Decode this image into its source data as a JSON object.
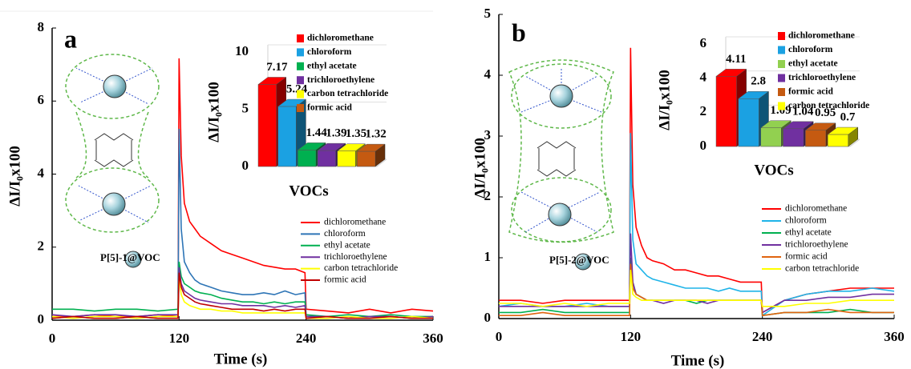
{
  "chart_data": [
    {
      "type": "line",
      "panel_label": "a",
      "annotation": "P[5]-1@VOC",
      "xlabel": "Time (s)",
      "ylabel": "ΔI/I₀x100",
      "x": [
        0,
        20,
        40,
        60,
        80,
        100,
        119,
        120,
        122,
        125,
        130,
        135,
        140,
        150,
        160,
        170,
        180,
        190,
        200,
        210,
        220,
        230,
        239,
        240,
        260,
        280,
        300,
        320,
        340,
        360
      ],
      "xlim": [
        0,
        360
      ],
      "xticks": [
        0,
        120,
        240,
        360
      ],
      "ylim": [
        0,
        8
      ],
      "yticks": [
        0,
        2,
        4,
        6,
        8
      ],
      "series": [
        {
          "name": "dichloromethane",
          "color": "#ff0000",
          "values": [
            0.1,
            0.1,
            0.15,
            0.1,
            0.1,
            0.15,
            0.1,
            7.17,
            4.5,
            3.2,
            2.7,
            2.5,
            2.3,
            2.1,
            1.9,
            1.8,
            1.7,
            1.6,
            1.5,
            1.45,
            1.4,
            1.4,
            1.3,
            0.3,
            0.25,
            0.2,
            0.3,
            0.2,
            0.3,
            0.25
          ]
        },
        {
          "name": "chloroform",
          "color": "#2e75b6",
          "values": [
            0.05,
            0.1,
            0.05,
            0.05,
            0.1,
            0.05,
            0.05,
            5.24,
            2.5,
            1.6,
            1.3,
            1.1,
            1.0,
            0.9,
            0.8,
            0.75,
            0.7,
            0.7,
            0.75,
            0.7,
            0.8,
            0.7,
            0.75,
            0.1,
            0.1,
            0.05,
            0.1,
            0.1,
            0.05,
            0.1
          ]
        },
        {
          "name": "ethyl acetate",
          "color": "#00b050",
          "values": [
            0.3,
            0.3,
            0.25,
            0.3,
            0.3,
            0.25,
            0.3,
            1.6,
            1.2,
            1.0,
            0.9,
            0.8,
            0.75,
            0.7,
            0.6,
            0.55,
            0.5,
            0.5,
            0.45,
            0.5,
            0.45,
            0.5,
            0.5,
            0.15,
            0.1,
            0.15,
            0.1,
            0.15,
            0.1,
            0.1
          ]
        },
        {
          "name": "trichloroethylene",
          "color": "#7030a0",
          "values": [
            0.15,
            0.1,
            0.15,
            0.15,
            0.1,
            0.15,
            0.15,
            1.45,
            1.0,
            0.8,
            0.7,
            0.6,
            0.55,
            0.5,
            0.45,
            0.45,
            0.4,
            0.4,
            0.4,
            0.35,
            0.4,
            0.35,
            0.4,
            0.1,
            0.1,
            0.05,
            0.1,
            0.1,
            0.05,
            0.1
          ]
        },
        {
          "name": "carbon tetrachloride",
          "color": "#ffff00",
          "values": [
            0.1,
            0.05,
            0.1,
            0.1,
            0.05,
            0.1,
            0.1,
            1.2,
            0.7,
            0.5,
            0.4,
            0.35,
            0.3,
            0.3,
            0.25,
            0.25,
            0.2,
            0.2,
            0.2,
            0.2,
            0.2,
            0.2,
            0.2,
            0.05,
            0.05,
            0.1,
            0.05,
            0.05,
            0.1,
            0.05
          ]
        },
        {
          "name": "formic acid",
          "color": "#c00000",
          "values": [
            0.05,
            0.1,
            0.05,
            0.05,
            0.1,
            0.05,
            0.05,
            1.3,
            0.9,
            0.7,
            0.6,
            0.5,
            0.45,
            0.4,
            0.35,
            0.3,
            0.3,
            0.3,
            0.25,
            0.3,
            0.25,
            0.3,
            0.3,
            0.05,
            0.1,
            0.05,
            0.05,
            0.1,
            0.05,
            0.05
          ]
        }
      ]
    },
    {
      "type": "bar",
      "xlabel": "VOCs",
      "ylabel": "ΔI/I₀x100",
      "categories": [
        "dichloromethane",
        "chloroform",
        "ethyl acetate",
        "trichloroethylene",
        "carbon tetrachloride",
        "formic acid"
      ],
      "values": [
        7.17,
        5.24,
        1.44,
        1.39,
        1.35,
        1.32
      ],
      "colors": [
        "#ff0000",
        "#1ba1e2",
        "#00b050",
        "#7030a0",
        "#ffff00",
        "#c55a11"
      ],
      "ylim": [
        0,
        10
      ],
      "yticks": [
        0,
        5,
        10
      ]
    },
    {
      "type": "line",
      "panel_label": "b",
      "annotation": "P[5]-2@VOC",
      "xlabel": "Time (s)",
      "ylabel": "ΔI/I₀x100",
      "x": [
        0,
        20,
        40,
        60,
        80,
        100,
        119,
        120,
        122,
        125,
        130,
        135,
        140,
        150,
        160,
        170,
        180,
        190,
        200,
        210,
        220,
        230,
        239,
        240,
        260,
        280,
        300,
        320,
        340,
        360
      ],
      "xlim": [
        0,
        360
      ],
      "xticks": [
        0,
        120,
        240,
        360
      ],
      "ylim": [
        0,
        5
      ],
      "yticks": [
        0,
        1,
        2,
        3,
        4,
        5
      ],
      "series": [
        {
          "name": "dichloromethane",
          "color": "#ff0000",
          "values": [
            0.3,
            0.3,
            0.25,
            0.3,
            0.3,
            0.3,
            0.3,
            4.45,
            2.2,
            1.5,
            1.2,
            1.0,
            0.95,
            0.9,
            0.8,
            0.8,
            0.75,
            0.7,
            0.7,
            0.65,
            0.6,
            0.6,
            0.6,
            0.1,
            0.3,
            0.4,
            0.45,
            0.5,
            0.5,
            0.5
          ]
        },
        {
          "name": "chloroform",
          "color": "#1fb4e8",
          "values": [
            0.2,
            0.25,
            0.2,
            0.2,
            0.25,
            0.2,
            0.2,
            3.05,
            1.3,
            0.9,
            0.8,
            0.7,
            0.65,
            0.6,
            0.55,
            0.5,
            0.5,
            0.5,
            0.45,
            0.5,
            0.45,
            0.45,
            0.45,
            0.05,
            0.3,
            0.4,
            0.45,
            0.45,
            0.5,
            0.45
          ]
        },
        {
          "name": "ethyl acetate",
          "color": "#00b050",
          "values": [
            0.1,
            0.1,
            0.15,
            0.1,
            0.1,
            0.1,
            0.1,
            1.0,
            0.6,
            0.4,
            0.35,
            0.3,
            0.3,
            0.3,
            0.3,
            0.3,
            0.25,
            0.3,
            0.3,
            0.3,
            0.3,
            0.3,
            0.3,
            0.05,
            0.1,
            0.1,
            0.1,
            0.15,
            0.1,
            0.1
          ]
        },
        {
          "name": "trichloroethylene",
          "color": "#7030a0",
          "values": [
            0.2,
            0.2,
            0.2,
            0.2,
            0.2,
            0.2,
            0.2,
            1.4,
            0.6,
            0.4,
            0.35,
            0.3,
            0.3,
            0.25,
            0.3,
            0.3,
            0.3,
            0.25,
            0.3,
            0.3,
            0.3,
            0.3,
            0.3,
            0.1,
            0.3,
            0.3,
            0.35,
            0.35,
            0.4,
            0.4
          ]
        },
        {
          "name": "formic acid",
          "color": "#e0640f",
          "values": [
            0.05,
            0.05,
            0.1,
            0.05,
            0.05,
            0.05,
            0.05,
            0.9,
            0.5,
            0.4,
            0.35,
            0.3,
            0.3,
            0.3,
            0.3,
            0.3,
            0.3,
            0.3,
            0.3,
            0.3,
            0.3,
            0.3,
            0.3,
            0.05,
            0.1,
            0.1,
            0.15,
            0.1,
            0.1,
            0.1
          ]
        },
        {
          "name": "carbon tetrachloride",
          "color": "#ffff00",
          "values": [
            0.25,
            0.25,
            0.2,
            0.25,
            0.2,
            0.25,
            0.25,
            0.8,
            0.4,
            0.35,
            0.3,
            0.3,
            0.3,
            0.3,
            0.3,
            0.3,
            0.3,
            0.3,
            0.3,
            0.3,
            0.3,
            0.3,
            0.3,
            0.2,
            0.2,
            0.25,
            0.25,
            0.3,
            0.3,
            0.3
          ]
        }
      ]
    },
    {
      "type": "bar",
      "xlabel": "VOCs",
      "ylabel": "ΔI/I₀x100",
      "categories": [
        "dichloromethane",
        "chloroform",
        "ethyl acetate",
        "trichloroethylene",
        "formic acid",
        "carbon tetrachloride"
      ],
      "values": [
        4.11,
        2.8,
        1.09,
        1.04,
        0.95,
        0.7
      ],
      "colors": [
        "#ff0000",
        "#1ba1e2",
        "#92d050",
        "#7030a0",
        "#c55a11",
        "#ffff00"
      ],
      "ylim": [
        0,
        6
      ],
      "yticks": [
        0,
        2,
        4,
        6
      ]
    }
  ]
}
